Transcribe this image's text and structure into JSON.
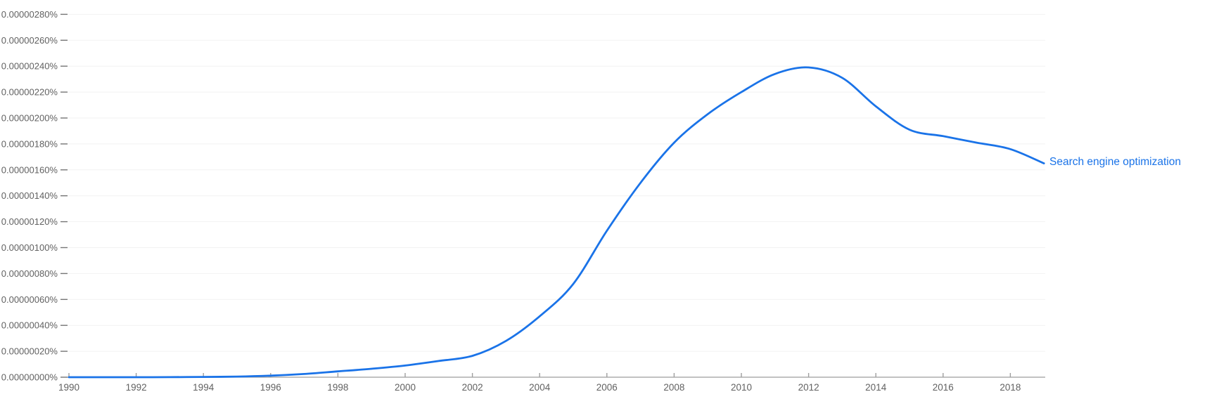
{
  "chart_data": {
    "type": "line",
    "title": "",
    "x": [
      1990,
      1991,
      1992,
      1993,
      1994,
      1995,
      1996,
      1997,
      1998,
      1999,
      2000,
      2001,
      2002,
      2003,
      2004,
      2005,
      2006,
      2007,
      2008,
      2009,
      2010,
      2011,
      2012,
      2013,
      2014,
      2015,
      2016,
      2017,
      2018,
      2019
    ],
    "series": [
      {
        "name": "Search engine optimization",
        "color": "#1a73e8",
        "values": [
          0,
          0,
          0,
          5e-10,
          2e-09,
          5e-09,
          1.2e-08,
          2.5e-08,
          4.5e-08,
          6.5e-08,
          9e-08,
          1.25e-07,
          1.65e-07,
          2.8e-07,
          4.7e-07,
          7.2e-07,
          1.13e-06,
          1.5e-06,
          1.81e-06,
          2.03e-06,
          2.2e-06,
          2.34e-06,
          2.39e-06,
          2.31e-06,
          2.09e-06,
          1.91e-06,
          1.86e-06,
          1.81e-06,
          1.76e-06,
          1.65e-06
        ]
      }
    ],
    "xlim": [
      1990,
      2019
    ],
    "ylim": [
      0,
      2.8e-06
    ],
    "grid": "horizontal-faint",
    "legend_position": "end-of-line",
    "y_ticks": {
      "step": 2e-07,
      "labels": [
        "0.00000000%",
        "0.00000020%",
        "0.00000040%",
        "0.00000060%",
        "0.00000080%",
        "0.00000100%",
        "0.00000120%",
        "0.00000140%",
        "0.00000160%",
        "0.00000180%",
        "0.00000200%",
        "0.00000220%",
        "0.00000240%",
        "0.00000260%",
        "0.00000280%"
      ]
    },
    "x_ticks": {
      "years": [
        1990,
        1992,
        1994,
        1996,
        1998,
        2000,
        2002,
        2004,
        2006,
        2008,
        2010,
        2012,
        2014,
        2016,
        2018
      ],
      "labels": [
        "1990",
        "1992",
        "1994",
        "1996",
        "1998",
        "2000",
        "2002",
        "2004",
        "2006",
        "2008",
        "2010",
        "2012",
        "2014",
        "2016",
        "2018"
      ]
    }
  },
  "colors": {
    "line": "#1a73e8",
    "series_label": "#1a73e8",
    "axis_text": "#616161",
    "axis_line": "#9e9e9e",
    "tick_dash": "#757575",
    "gridline": "#f2f2f2",
    "background": "#ffffff"
  }
}
